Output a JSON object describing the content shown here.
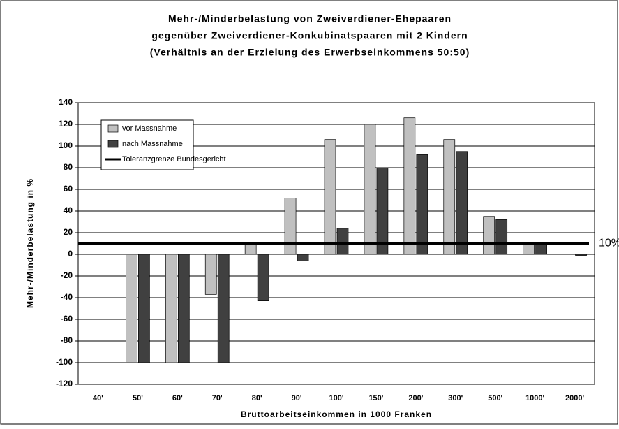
{
  "chart_data": {
    "type": "bar",
    "title": [
      "Mehr-/Minderbelastung von Zweiverdiener-Ehepaaren",
      "gegenüber Zweiverdiener-Konkubinatspaaren mit 2 Kindern",
      "(Verhältnis an der Erzielung des Erwerbseinkommens 50:50)"
    ],
    "x_label": "Bruttoarbeitseinkommen in 1000 Franken",
    "y_label": "Mehr-/Minderbelastung in %",
    "categories": [
      "40'",
      "50'",
      "60'",
      "70'",
      "80'",
      "90'",
      "100'",
      "150'",
      "200'",
      "300'",
      "500'",
      "1000'",
      "2000'"
    ],
    "series": [
      {
        "name": "vor Massnahme",
        "color": "#c0c0c0",
        "values": [
          null,
          -100,
          -100,
          -37,
          10,
          52,
          106,
          120,
          126,
          106,
          35,
          11,
          null
        ]
      },
      {
        "name": "nach Massnahme",
        "color": "#404040",
        "values": [
          null,
          -100,
          -100,
          -100,
          -43,
          -6,
          24,
          80,
          92,
          95,
          32,
          10,
          -1
        ]
      }
    ],
    "reference_line": {
      "name": "Toleranzgrenze Bundesgericht",
      "value": 10,
      "label": "10%",
      "color": "#000000"
    },
    "ylim": [
      -120,
      140
    ],
    "yticks": [
      -120,
      -100,
      -80,
      -60,
      -40,
      -20,
      0,
      20,
      40,
      60,
      80,
      100,
      120,
      140
    ],
    "grid": true,
    "legend": "upper left"
  }
}
